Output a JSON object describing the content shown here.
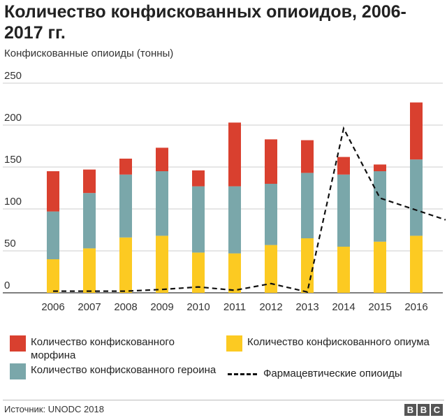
{
  "title": "Количество конфискованных опиоидов, 2006-2017 гг.",
  "subtitle": "Конфискованные опиоиды (тонны)",
  "source": "Источник: UNODC 2018",
  "logo": [
    "B",
    "B",
    "C"
  ],
  "colors": {
    "morphine": "#d9402f",
    "heroin": "#7aa7aa",
    "opium": "#fcca22",
    "pharma": "#111111",
    "grid": "#cccccc"
  },
  "legend": {
    "morphine": "Количество конфискованного морфина",
    "heroin": "Количество конфискованного героина",
    "opium": "Количество конфискованного опиума",
    "pharma": "Фармацевтические опиоиды"
  },
  "chart_data": {
    "type": "bar",
    "stacked": true,
    "categories": [
      "2006",
      "2007",
      "2008",
      "2009",
      "2010",
      "2011",
      "2012",
      "2013",
      "2014",
      "2015",
      "2016"
    ],
    "series": [
      {
        "name": "Количество конфискованного опиума",
        "values": [
          40,
          53,
          66,
          68,
          48,
          47,
          57,
          65,
          55,
          61,
          68
        ]
      },
      {
        "name": "Количество конфискованного героина",
        "values": [
          57,
          66,
          75,
          77,
          79,
          80,
          73,
          78,
          86,
          84,
          91
        ]
      },
      {
        "name": "Количество конфискованного морфина",
        "values": [
          48,
          28,
          19,
          28,
          19,
          76,
          53,
          39,
          21,
          8,
          68
        ]
      }
    ],
    "line_series": {
      "name": "Фармацевтические опиоиды",
      "values": [
        2,
        2,
        2,
        4,
        7,
        3,
        11,
        1,
        196,
        113,
        87
      ]
    },
    "ylim": [
      0,
      250
    ],
    "yticks": [
      "0",
      "50",
      "100",
      "150",
      "200",
      "250"
    ],
    "grid": true
  }
}
